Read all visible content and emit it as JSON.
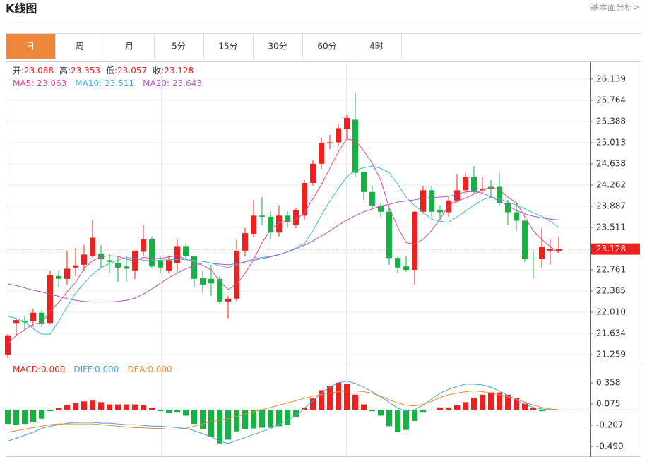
{
  "header": {
    "title": "K线图",
    "link": "基本面分析>"
  },
  "tabs": [
    "日",
    "周",
    "月",
    "5分",
    "15分",
    "30分",
    "60分",
    "4时"
  ],
  "active_tab": 0,
  "chart_data": [
    {
      "type": "candlestick",
      "ohlc_labels": [
        "开:",
        "高:",
        "低:",
        "收:"
      ],
      "up_color": "#f0201c",
      "down_color": "#14b143",
      "open": [
        21.26,
        21.82,
        21.86,
        21.85,
        22.0,
        21.82,
        22.65,
        22.6,
        22.8,
        22.85,
        23.0,
        23.05,
        22.93,
        22.88,
        22.82,
        22.75,
        23.08,
        23.3,
        22.92,
        22.75,
        22.88,
        23.18,
        23.0,
        22.62,
        22.6,
        22.6,
        22.2,
        22.25,
        23.1,
        23.4,
        23.72,
        23.7,
        23.42,
        23.72,
        23.55,
        23.72,
        24.3,
        24.64,
        25.0,
        25.02,
        25.25,
        25.42,
        24.5,
        24.14,
        23.9,
        23.79,
        22.97,
        22.82,
        22.76,
        23.79,
        24.17,
        23.82,
        23.78,
        23.99,
        24.17,
        24.4,
        24.17,
        24.23,
        24.23,
        23.94,
        23.78,
        23.63,
        22.96,
        22.95,
        23.1,
        23.088
      ],
      "high": [
        21.62,
        21.9,
        21.95,
        22.07,
        22.05,
        22.75,
        22.75,
        23.1,
        23.15,
        23.2,
        23.65,
        23.2,
        23.05,
        23.0,
        23.0,
        23.1,
        23.55,
        23.35,
        23.0,
        23.0,
        23.3,
        23.22,
        23.0,
        22.75,
        22.85,
        22.65,
        22.3,
        23.3,
        23.5,
        24.0,
        24.05,
        23.8,
        23.9,
        23.8,
        23.85,
        24.35,
        24.7,
        25.1,
        25.15,
        25.35,
        25.5,
        25.9,
        24.5,
        24.25,
        23.95,
        23.85,
        23.0,
        23.0,
        23.8,
        24.25,
        24.25,
        23.9,
        24.05,
        24.45,
        24.48,
        24.6,
        24.4,
        24.35,
        24.48,
        24.0,
        23.95,
        23.65,
        23.1,
        23.5,
        23.3,
        23.353
      ],
      "low": [
        21.2,
        21.6,
        21.7,
        21.75,
        21.75,
        21.8,
        22.45,
        22.5,
        22.65,
        22.75,
        22.98,
        22.8,
        22.7,
        22.55,
        22.55,
        22.6,
        23.0,
        22.78,
        22.7,
        22.7,
        22.7,
        22.95,
        22.45,
        22.35,
        22.3,
        22.15,
        21.9,
        22.2,
        23.0,
        23.35,
        23.55,
        23.3,
        23.35,
        23.5,
        23.5,
        23.65,
        24.25,
        24.55,
        24.9,
        24.95,
        25.1,
        24.4,
        24.0,
        23.85,
        23.7,
        22.85,
        22.7,
        22.72,
        22.5,
        23.75,
        23.7,
        23.65,
        23.7,
        23.95,
        24.1,
        24.1,
        24.1,
        24.05,
        23.9,
        23.55,
        23.45,
        22.9,
        22.62,
        22.8,
        22.85,
        23.057
      ],
      "close": [
        21.6,
        21.87,
        21.83,
        22.0,
        21.8,
        22.67,
        22.6,
        22.78,
        22.84,
        23.03,
        23.33,
        22.95,
        22.9,
        22.8,
        22.78,
        23.1,
        23.3,
        22.82,
        22.8,
        22.93,
        23.18,
        23.0,
        22.6,
        22.5,
        22.52,
        22.2,
        22.25,
        23.1,
        23.41,
        23.72,
        23.7,
        23.42,
        23.72,
        23.6,
        23.82,
        24.3,
        24.64,
        25.01,
        25.02,
        25.27,
        25.45,
        24.48,
        24.14,
        23.9,
        23.79,
        22.97,
        22.8,
        22.76,
        23.79,
        24.17,
        23.79,
        23.78,
        23.99,
        24.17,
        24.4,
        24.14,
        24.2,
        24.2,
        23.95,
        23.78,
        23.63,
        22.96,
        22.95,
        23.17,
        23.13,
        23.128
      ],
      "series": [
        {
          "name": "MA5:",
          "color": "#e4468f",
          "values": [
            21.45,
            21.6,
            21.7,
            21.8,
            21.82,
            22.03,
            22.18,
            22.37,
            22.54,
            22.78,
            22.92,
            22.99,
            23.01,
            23.0,
            22.95,
            22.91,
            22.98,
            22.96,
            22.96,
            22.99,
            23.01,
            22.95,
            22.9,
            22.84,
            22.76,
            22.56,
            22.41,
            22.51,
            22.7,
            22.94,
            23.24,
            23.47,
            23.59,
            23.63,
            23.65,
            23.77,
            24.02,
            24.27,
            24.56,
            24.85,
            25.08,
            25.05,
            24.87,
            24.65,
            24.35,
            23.86,
            23.52,
            23.24,
            23.22,
            23.3,
            23.46,
            23.66,
            23.9,
            23.98,
            24.03,
            24.1,
            24.18,
            24.22,
            24.18,
            24.05,
            23.95,
            23.7,
            23.45,
            23.3,
            23.17,
            23.063
          ]
        },
        {
          "name": "MA10:",
          "color": "#3cb6de",
          "values": [
            21.94,
            21.9,
            21.84,
            21.72,
            21.62,
            21.62,
            21.85,
            22.1,
            22.35,
            22.52,
            22.68,
            22.8,
            22.87,
            22.93,
            22.98,
            22.96,
            22.93,
            22.92,
            22.93,
            22.94,
            22.94,
            22.94,
            22.93,
            22.91,
            22.88,
            22.83,
            22.8,
            22.85,
            22.91,
            22.95,
            22.98,
            23.0,
            23.03,
            23.08,
            23.15,
            23.23,
            23.45,
            23.73,
            23.98,
            24.2,
            24.41,
            24.52,
            24.57,
            24.6,
            24.56,
            24.48,
            24.28,
            24.05,
            23.9,
            23.78,
            23.66,
            23.62,
            23.6,
            23.7,
            23.8,
            23.91,
            24.0,
            24.05,
            24.02,
            23.96,
            23.91,
            23.84,
            23.77,
            23.71,
            23.62,
            23.511
          ]
        },
        {
          "name": "MA20:",
          "color": "#b356c6",
          "values": [
            22.51,
            22.48,
            22.44,
            22.4,
            22.37,
            22.33,
            22.29,
            22.25,
            22.22,
            22.2,
            22.19,
            22.19,
            22.19,
            22.2,
            22.22,
            22.26,
            22.33,
            22.42,
            22.52,
            22.62,
            22.7,
            22.78,
            22.83,
            22.88,
            22.88,
            22.86,
            22.85,
            22.87,
            22.9,
            22.93,
            22.96,
            22.99,
            23.03,
            23.08,
            23.13,
            23.2,
            23.27,
            23.36,
            23.45,
            23.55,
            23.64,
            23.72,
            23.79,
            23.84,
            23.89,
            23.92,
            23.96,
            23.98,
            24.0,
            24.03,
            24.04,
            24.05,
            24.06,
            24.1,
            24.14,
            24.15,
            24.12,
            24.05,
            23.98,
            23.9,
            23.81,
            23.75,
            23.71,
            23.68,
            23.66,
            23.643
          ]
        }
      ],
      "ylim": [
        21.134,
        26.439
      ],
      "yticks": [
        26.139,
        25.764,
        25.388,
        25.013,
        24.638,
        24.262,
        23.887,
        23.511,
        22.761,
        22.385,
        {
          "value": 22.01,
          "label": "22.010"
        },
        21.634,
        21.259
      ],
      "grid": true,
      "last_price_line": true
    },
    {
      "type": "macd",
      "up_color": "#f0201c",
      "down_color": "#14b143",
      "series": [
        {
          "name": "MACD:",
          "kind": "bar",
          "color": "#e8291c",
          "readout": "0.000",
          "values": [
            -0.19,
            -0.2,
            -0.19,
            -0.17,
            -0.12,
            -0.02,
            0.02,
            0.06,
            0.09,
            0.11,
            0.12,
            0.1,
            0.07,
            0.07,
            0.07,
            0.07,
            0.06,
            0.02,
            -0.02,
            -0.04,
            -0.03,
            -0.08,
            -0.19,
            -0.26,
            -0.36,
            -0.45,
            -0.4,
            -0.29,
            -0.26,
            -0.25,
            -0.24,
            -0.24,
            -0.22,
            -0.2,
            -0.1,
            0.02,
            0.15,
            0.26,
            0.32,
            0.36,
            0.34,
            0.2,
            0.07,
            -0.02,
            -0.08,
            -0.22,
            -0.3,
            -0.27,
            -0.15,
            -0.03,
            0.0,
            0.03,
            0.03,
            0.06,
            0.1,
            0.16,
            0.2,
            0.23,
            0.23,
            0.2,
            0.16,
            0.08,
            0.02,
            -0.02,
            0.0,
            0.0
          ]
        },
        {
          "name": "DIFF:",
          "kind": "line",
          "color": "#4a9ee6",
          "readout": "0.000",
          "values": [
            -0.42,
            -0.38,
            -0.34,
            -0.3,
            -0.25,
            -0.22,
            -0.2,
            -0.18,
            -0.17,
            -0.17,
            -0.17,
            -0.18,
            -0.18,
            -0.19,
            -0.2,
            -0.2,
            -0.21,
            -0.22,
            -0.22,
            -0.23,
            -0.24,
            -0.25,
            -0.28,
            -0.32,
            -0.36,
            -0.42,
            -0.45,
            -0.41,
            -0.37,
            -0.33,
            -0.29,
            -0.25,
            -0.2,
            -0.14,
            -0.08,
            0.02,
            0.12,
            0.22,
            0.3,
            0.36,
            0.38,
            0.35,
            0.3,
            0.24,
            0.17,
            0.1,
            0.02,
            -0.02,
            0.0,
            0.06,
            0.14,
            0.22,
            0.27,
            0.31,
            0.34,
            0.34,
            0.33,
            0.3,
            0.25,
            0.19,
            0.13,
            0.07,
            0.03,
            0.01,
            0.0,
            0.0
          ]
        },
        {
          "name": "DEA:",
          "kind": "line",
          "color": "#f08a32",
          "readout": "0.000",
          "values": [
            -0.3,
            -0.28,
            -0.26,
            -0.24,
            -0.22,
            -0.2,
            -0.19,
            -0.19,
            -0.19,
            -0.19,
            -0.19,
            -0.2,
            -0.21,
            -0.22,
            -0.23,
            -0.24,
            -0.24,
            -0.25,
            -0.25,
            -0.26,
            -0.26,
            -0.25,
            -0.22,
            -0.19,
            -0.16,
            -0.14,
            -0.12,
            -0.09,
            -0.06,
            -0.03,
            0.0,
            0.03,
            0.06,
            0.09,
            0.12,
            0.15,
            0.18,
            0.2,
            0.22,
            0.24,
            0.25,
            0.25,
            0.24,
            0.22,
            0.18,
            0.13,
            0.09,
            0.06,
            0.05,
            0.07,
            0.11,
            0.16,
            0.2,
            0.22,
            0.24,
            0.25,
            0.24,
            0.22,
            0.2,
            0.17,
            0.14,
            0.1,
            0.06,
            0.03,
            0.01,
            0.0
          ]
        }
      ],
      "ylim": [
        -0.631,
        0.631
      ],
      "yticks": [
        0.358,
        0.075,
        -0.207,
        {
          "value": -0.49,
          "label": "-0.490"
        }
      ]
    }
  ]
}
